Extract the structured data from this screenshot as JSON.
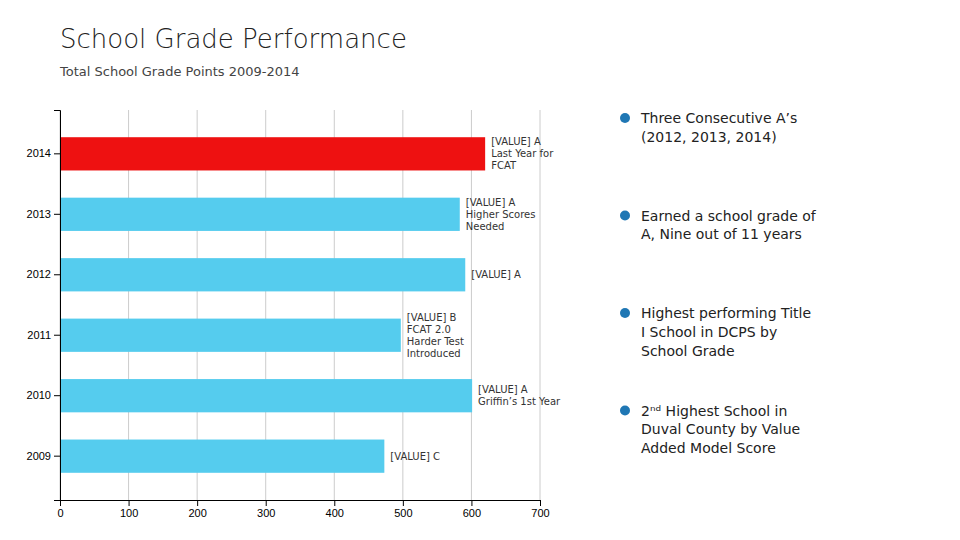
{
  "chart_data": {
    "type": "bar",
    "orientation": "horizontal",
    "title": "School Grade Performance",
    "subtitle": "Total School Grade Points 2009-2014",
    "categories": [
      "2014",
      "2013",
      "2012",
      "2011",
      "2010",
      "2009"
    ],
    "values": [
      620,
      583,
      591,
      497,
      601,
      473
    ],
    "colors": [
      "#EE1111",
      "#55CCEE",
      "#55CCEE",
      "#55CCEE",
      "#55CCEE",
      "#55CCEE"
    ],
    "annotations": [
      "[VALUE] A\nLast Year for\nFCAT",
      "[VALUE] A\nHigher Scores\nNeeded",
      "[VALUE] A",
      "[VALUE] B\nFCAT 2.0\nHarder Test\nIntroduced",
      "[VALUE] A\nGriffin’s 1st Year",
      "[VALUE] C"
    ],
    "bullet_points": [
      "Three Consecutive A’s\n(2012, 2013, 2014)",
      "Earned a school grade of\nA, Nine out of 11 years",
      "Highest performing Title\nI School in DCPS by\nSchool Grade",
      "2ⁿᵈ Highest School in\nDuval County by Value\nAdded Model Score"
    ],
    "xlim": [
      0,
      700
    ],
    "xticks": [
      0,
      100,
      200,
      300,
      400,
      500,
      600,
      700
    ],
    "grid": true
  }
}
